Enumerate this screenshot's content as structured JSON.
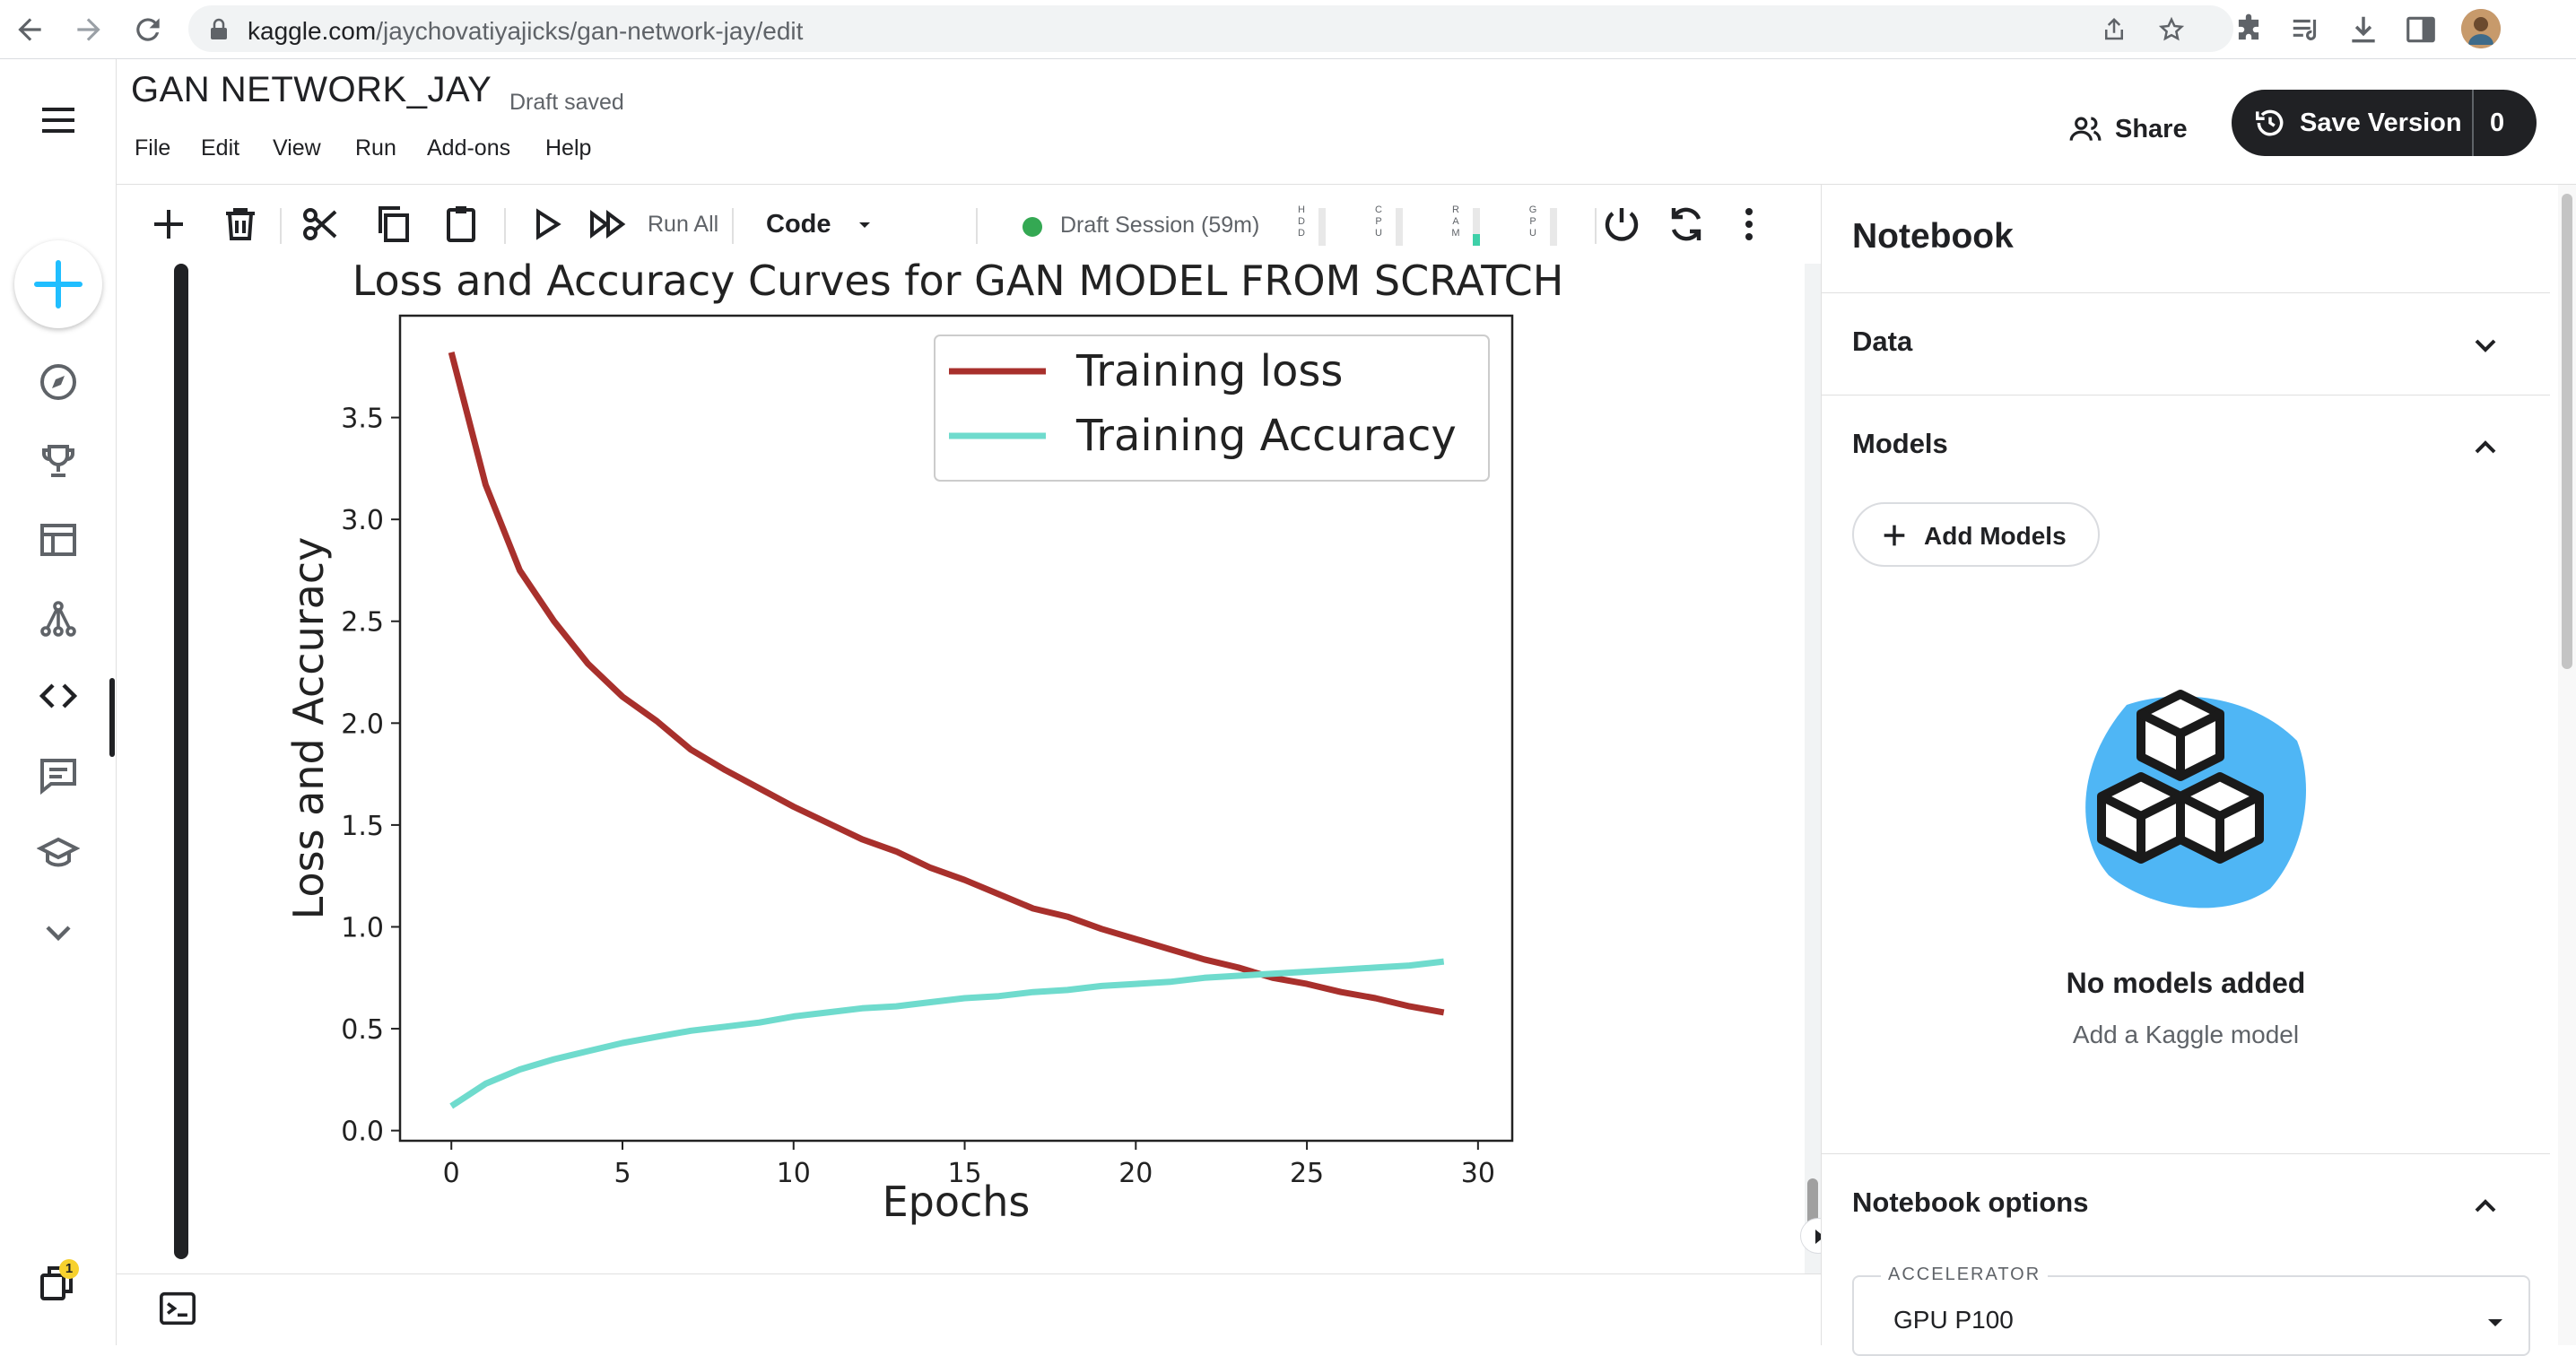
{
  "browser": {
    "url_host": "kaggle.com",
    "url_path": "/jaychovatiyajicks/gan-network-jay/edit"
  },
  "header": {
    "title": "GAN NETWORK_JAY",
    "status": "Draft saved",
    "menu": [
      "File",
      "Edit",
      "View",
      "Run",
      "Add-ons",
      "Help"
    ],
    "share_label": "Share",
    "save_label": "Save Version",
    "save_count": "0"
  },
  "toolbar": {
    "run_all_label": "Run All",
    "cell_type": "Code",
    "session": "Draft Session (59m)",
    "meters": [
      {
        "label": "HDD",
        "level": 0.0
      },
      {
        "label": "CPU",
        "level": 0.0
      },
      {
        "label": "RAM",
        "level": 0.3
      },
      {
        "label": "GPU",
        "level": 0.0
      }
    ]
  },
  "rail": {
    "notifications_count": "1"
  },
  "panel": {
    "title": "Notebook",
    "sections": {
      "data": "Data",
      "models": "Models",
      "options": "Notebook options"
    },
    "add_models_label": "Add Models",
    "empty_title": "No models added",
    "empty_subtitle": "Add a Kaggle model",
    "accelerator_label": "ACCELERATOR",
    "accelerator_value": "GPU P100"
  },
  "chart_data": {
    "type": "line",
    "title": "Loss and Accuracy Curves for GAN MODEL FROM SCRATCH",
    "xlabel": "Epochs",
    "ylabel": "Loss and Accuracy",
    "xlim": [
      -1.5,
      31
    ],
    "ylim": [
      -0.05,
      4.0
    ],
    "xticks": [
      0,
      5,
      10,
      15,
      20,
      25,
      30
    ],
    "yticks": [
      0.0,
      0.5,
      1.0,
      1.5,
      2.0,
      2.5,
      3.0,
      3.5
    ],
    "legend_position": "top-right",
    "grid": false,
    "x": [
      0,
      1,
      2,
      3,
      4,
      5,
      6,
      7,
      8,
      9,
      10,
      11,
      12,
      13,
      14,
      15,
      16,
      17,
      18,
      19,
      20,
      21,
      22,
      23,
      24,
      25,
      26,
      27,
      28,
      29
    ],
    "series": [
      {
        "name": "Training loss",
        "color": "#a8302c",
        "values": [
          3.82,
          3.17,
          2.75,
          2.5,
          2.29,
          2.13,
          2.01,
          1.87,
          1.77,
          1.68,
          1.59,
          1.51,
          1.43,
          1.37,
          1.29,
          1.23,
          1.16,
          1.09,
          1.05,
          0.99,
          0.94,
          0.89,
          0.84,
          0.8,
          0.75,
          0.72,
          0.68,
          0.65,
          0.61,
          0.58
        ]
      },
      {
        "name": "Training Accuracy",
        "color": "#6fdbcd",
        "values": [
          0.12,
          0.23,
          0.3,
          0.35,
          0.39,
          0.43,
          0.46,
          0.49,
          0.51,
          0.53,
          0.56,
          0.58,
          0.6,
          0.61,
          0.63,
          0.65,
          0.66,
          0.68,
          0.69,
          0.71,
          0.72,
          0.73,
          0.75,
          0.76,
          0.77,
          0.78,
          0.79,
          0.8,
          0.81,
          0.83
        ]
      }
    ]
  }
}
